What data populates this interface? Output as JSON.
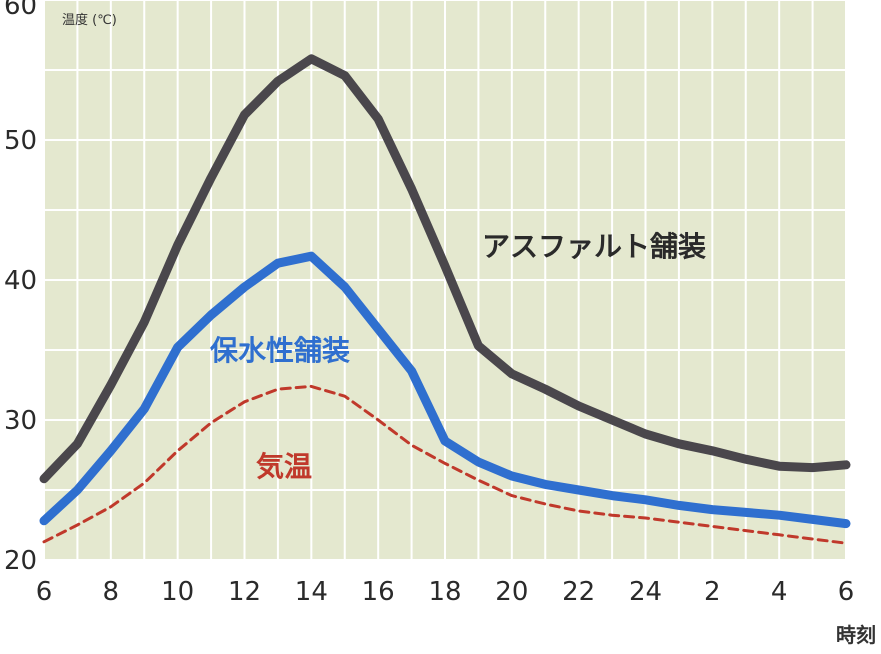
{
  "chart_data": {
    "type": "line",
    "ylabel": "温度 (℃)",
    "xlabel": "時刻",
    "ylim": [
      20,
      60
    ],
    "yticks": [
      20,
      30,
      40,
      50,
      60
    ],
    "x_tick_labels": [
      "6",
      "8",
      "10",
      "12",
      "14",
      "16",
      "18",
      "20",
      "22",
      "24",
      "2",
      "4",
      "6"
    ],
    "x_hours_sequence": [
      "6",
      "7",
      "8",
      "9",
      "10",
      "11",
      "12",
      "13",
      "14",
      "15",
      "16",
      "17",
      "18",
      "19",
      "20",
      "21",
      "22",
      "23",
      "24",
      "1",
      "2",
      "3",
      "4",
      "5",
      "6"
    ],
    "grid": true,
    "background": "#e4e8cf",
    "series": [
      {
        "name": "アスファルト舗装",
        "color": "#4a474c",
        "style": "solid",
        "values": [
          25.8,
          28.3,
          32.5,
          37.0,
          42.5,
          47.3,
          51.8,
          54.2,
          55.8,
          54.6,
          51.5,
          46.5,
          41.0,
          35.3,
          33.3,
          32.2,
          31.0,
          30.0,
          29.0,
          28.3,
          27.8,
          27.2,
          26.7,
          26.6,
          26.8
        ]
      },
      {
        "name": "保水性舗装",
        "color": "#2f6fcf",
        "style": "solid",
        "values": [
          22.8,
          25.0,
          27.8,
          30.8,
          35.2,
          37.5,
          39.5,
          41.2,
          41.7,
          39.5,
          36.5,
          33.5,
          28.5,
          27.0,
          26.0,
          25.4,
          25.0,
          24.6,
          24.3,
          23.9,
          23.6,
          23.4,
          23.2,
          22.9,
          22.6
        ]
      },
      {
        "name": "気温",
        "color": "#c0392b",
        "style": "dashed",
        "values": [
          21.3,
          22.5,
          23.8,
          25.5,
          27.8,
          29.8,
          31.3,
          32.2,
          32.4,
          31.7,
          30.0,
          28.2,
          26.9,
          25.7,
          24.6,
          24.0,
          23.5,
          23.2,
          23.0,
          22.7,
          22.4,
          22.1,
          21.8,
          21.5,
          21.2
        ]
      }
    ]
  }
}
